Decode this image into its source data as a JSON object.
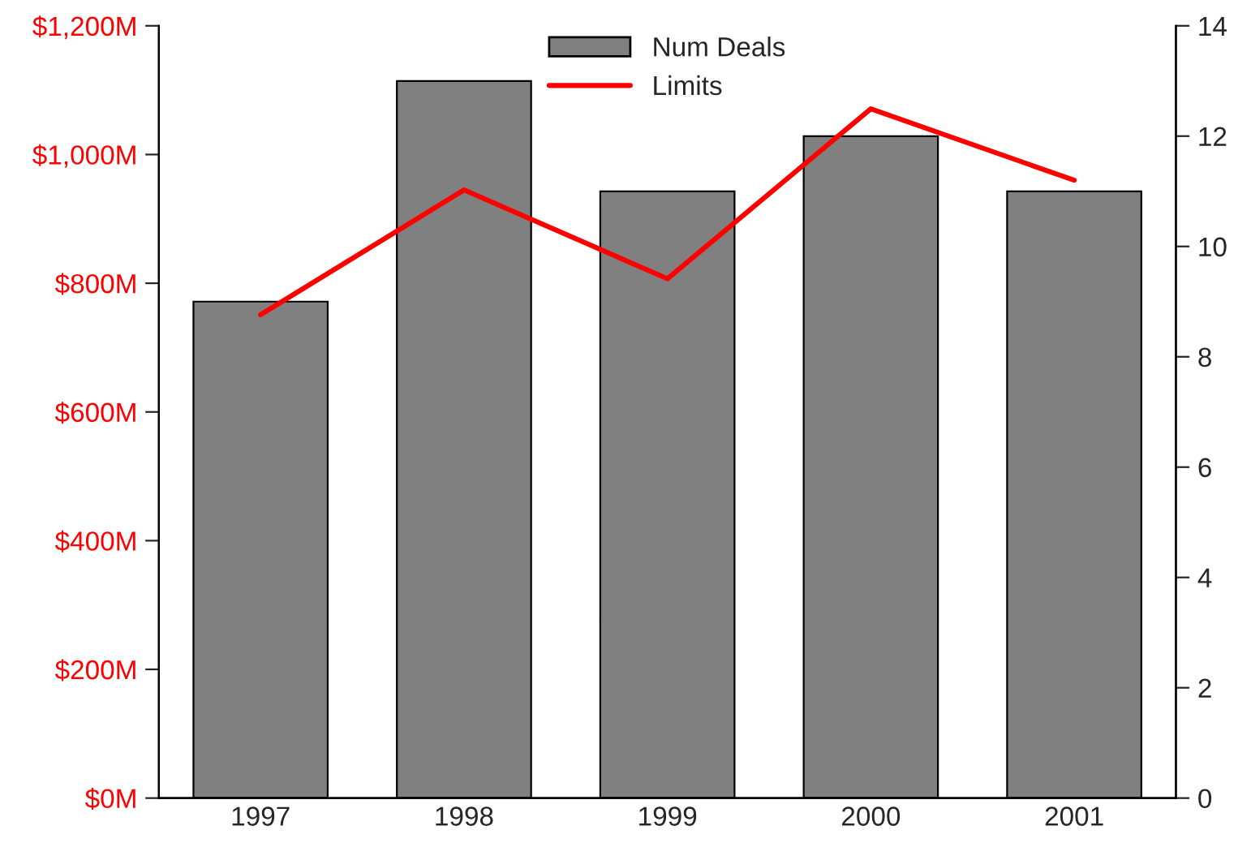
{
  "chart_data": {
    "type": "bar",
    "categories": [
      "1997",
      "1998",
      "1999",
      "2000",
      "2001"
    ],
    "series": [
      {
        "name": "Num Deals",
        "axis": "y2",
        "color": "#808080",
        "values": [
          9,
          13,
          11,
          12,
          11
        ]
      },
      {
        "name": "Limits",
        "type": "line",
        "color": "#ff0000",
        "values": [
          751,
          945,
          807,
          1071,
          960
        ]
      }
    ],
    "ylim": [
      0,
      1200
    ],
    "yticks": [
      {
        "value": 0,
        "label": "$0M"
      },
      {
        "value": 200,
        "label": "$200M"
      },
      {
        "value": 400,
        "label": "$400M"
      },
      {
        "value": 600,
        "label": "$600M"
      },
      {
        "value": 800,
        "label": "$800M"
      },
      {
        "value": 1000,
        "label": "$1,000M"
      },
      {
        "value": 1200,
        "label": "$1,200M"
      }
    ],
    "y2lim": [
      0,
      14
    ],
    "y2ticks": [
      0,
      2,
      4,
      6,
      8,
      10,
      12,
      14
    ],
    "grid": false,
    "legend": "top",
    "marker": "none",
    "line_style": "solid"
  }
}
